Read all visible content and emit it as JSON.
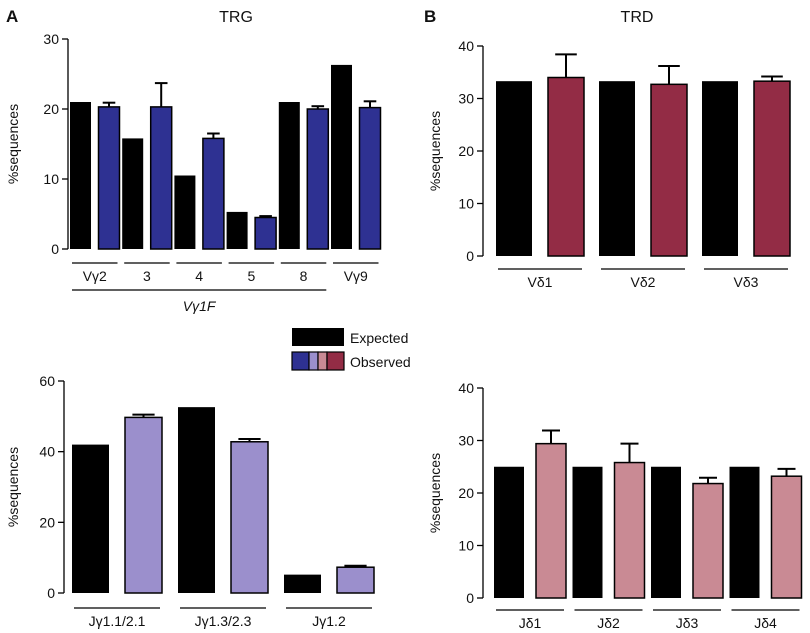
{
  "figure": {
    "panel_a_letter": "A",
    "panel_b_letter": "B"
  },
  "colors": {
    "expected": "#000000",
    "trg_v_observed": "#2e3192",
    "trg_j_observed": "#9b8fcc",
    "trd_v_observed": "#932c45",
    "trd_j_observed": "#c98a94"
  },
  "legend": {
    "expected_label": "Expected",
    "observed_label": "Observed",
    "position": "between-rows-center"
  },
  "chart_data": [
    {
      "id": "trg_v",
      "type": "bar",
      "title": "TRG",
      "ylabel": "%sequences",
      "ylim": [
        0,
        30
      ],
      "yticks": [
        0,
        10,
        20,
        30
      ],
      "categories": [
        "Vγ2",
        "3",
        "4",
        "5",
        "8",
        "Vγ9"
      ],
      "group_label": "Vγ1F",
      "group_span": [
        "Vγ2",
        "8"
      ],
      "series": [
        {
          "name": "Expected",
          "values": [
            21.0,
            15.8,
            10.5,
            5.3,
            21.0,
            26.3
          ],
          "errors": [
            0,
            0,
            0,
            0,
            0,
            0
          ]
        },
        {
          "name": "Observed",
          "values": [
            20.3,
            20.3,
            15.8,
            4.5,
            20.0,
            20.2
          ],
          "errors": [
            0.6,
            3.4,
            0.7,
            0.2,
            0.4,
            0.9
          ]
        }
      ]
    },
    {
      "id": "trd_v",
      "type": "bar",
      "title": "TRD",
      "ylabel": "%sequences",
      "ylim": [
        0,
        40
      ],
      "yticks": [
        0,
        10,
        20,
        30,
        40
      ],
      "categories": [
        "Vδ1",
        "Vδ2",
        "Vδ3"
      ],
      "series": [
        {
          "name": "Expected",
          "values": [
            33.3,
            33.3,
            33.3
          ],
          "errors": [
            0,
            0,
            0
          ]
        },
        {
          "name": "Observed",
          "values": [
            34.0,
            32.7,
            33.3
          ],
          "errors": [
            4.4,
            3.5,
            0.9
          ]
        }
      ]
    },
    {
      "id": "trg_j",
      "type": "bar",
      "title": "",
      "ylabel": "%sequences",
      "ylim": [
        0,
        60
      ],
      "yticks": [
        0,
        20,
        40,
        60
      ],
      "categories": [
        "Jγ1.1/2.1",
        "Jγ1.3/2.3",
        "Jγ1.2"
      ],
      "series": [
        {
          "name": "Expected",
          "values": [
            42.0,
            52.6,
            5.2
          ],
          "errors": [
            0,
            0,
            0
          ]
        },
        {
          "name": "Observed",
          "values": [
            49.7,
            42.8,
            7.3
          ],
          "errors": [
            0.8,
            0.8,
            0.4
          ]
        }
      ]
    },
    {
      "id": "trd_j",
      "type": "bar",
      "title": "",
      "ylabel": "%sequences",
      "ylim": [
        0,
        40
      ],
      "yticks": [
        0,
        10,
        20,
        30,
        40
      ],
      "categories": [
        "Jδ1",
        "Jδ2",
        "Jδ3",
        "Jδ4"
      ],
      "series": [
        {
          "name": "Expected",
          "values": [
            25.0,
            25.0,
            25.0,
            25.0
          ],
          "errors": [
            0,
            0,
            0,
            0
          ]
        },
        {
          "name": "Observed",
          "values": [
            29.4,
            25.8,
            21.8,
            23.2
          ],
          "errors": [
            2.5,
            3.6,
            1.1,
            1.4
          ]
        }
      ]
    }
  ]
}
